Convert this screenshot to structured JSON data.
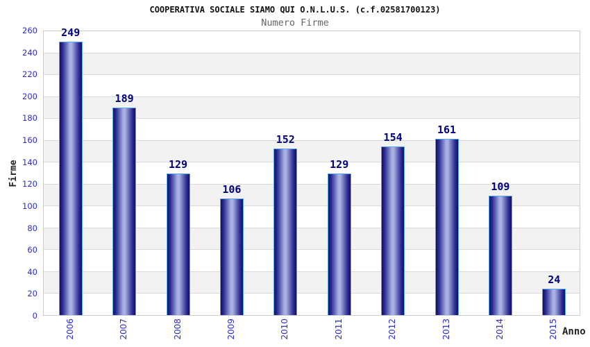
{
  "chart_data": {
    "type": "bar",
    "title": "COOPERATIVA SOCIALE SIAMO QUI O.N.L.U.S. (c.f.02581700123)",
    "subtitle": "Numero Firme",
    "categories": [
      "2006",
      "2007",
      "2008",
      "2009",
      "2010",
      "2011",
      "2012",
      "2013",
      "2014",
      "2015"
    ],
    "values": [
      249,
      189,
      129,
      106,
      152,
      129,
      154,
      161,
      109,
      24
    ],
    "xlabel": "Anno",
    "ylabel": "Firme",
    "ylim": [
      0,
      260
    ],
    "ytick_step": 20,
    "legend": "none",
    "grid": "horizontal-alternating-bands",
    "colors": {
      "tick_label": "#2b2bd0",
      "value_label": "#00007e",
      "axis_title": "#222222",
      "title": "#111111",
      "subtitle": "#666666",
      "band_gray": "#f2f2f2",
      "band_white": "#ffffff",
      "gridline": "#d9d9d9",
      "plot_border": "#cccccc",
      "bar_border": "#55a9f7",
      "bar_edge": "#10105f",
      "bar_mid": "#2e2e95",
      "bar_highlight": "#a9b1e1"
    }
  }
}
